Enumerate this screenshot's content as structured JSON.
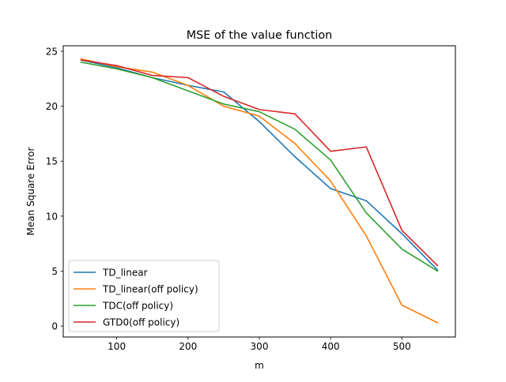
{
  "chart_data": {
    "type": "line",
    "title": "MSE of the value function",
    "xlabel": "m",
    "ylabel": "Mean Square Error",
    "xlim": [
      25,
      575
    ],
    "ylim": [
      -1,
      25.5
    ],
    "xticks": [
      100,
      200,
      300,
      400,
      500
    ],
    "yticks": [
      0,
      5,
      10,
      15,
      20,
      25
    ],
    "grid": false,
    "legend_position": "lower-left",
    "x": [
      50,
      100,
      150,
      200,
      250,
      300,
      350,
      400,
      450,
      500,
      550
    ],
    "series": [
      {
        "name": "TD_linear",
        "color": "#1f77b4",
        "values": [
          24.2,
          23.5,
          22.6,
          21.9,
          21.3,
          18.6,
          15.4,
          12.5,
          11.4,
          8.4,
          5.1
        ]
      },
      {
        "name": "TD_linear(off policy)",
        "color": "#ff7f0e",
        "values": [
          24.3,
          23.6,
          23.1,
          21.9,
          20.0,
          19.1,
          16.6,
          13.2,
          8.2,
          1.9,
          0.3
        ]
      },
      {
        "name": "TDC(off policy)",
        "color": "#2ca02c",
        "values": [
          24.0,
          23.4,
          22.6,
          21.4,
          20.2,
          19.5,
          17.9,
          15.1,
          10.3,
          7.0,
          5.0
        ]
      },
      {
        "name": "GTD0(off policy)",
        "color": "#d62728",
        "values": [
          24.2,
          23.7,
          22.8,
          22.6,
          20.9,
          19.7,
          19.3,
          15.9,
          16.3,
          8.7,
          5.5
        ]
      }
    ]
  }
}
